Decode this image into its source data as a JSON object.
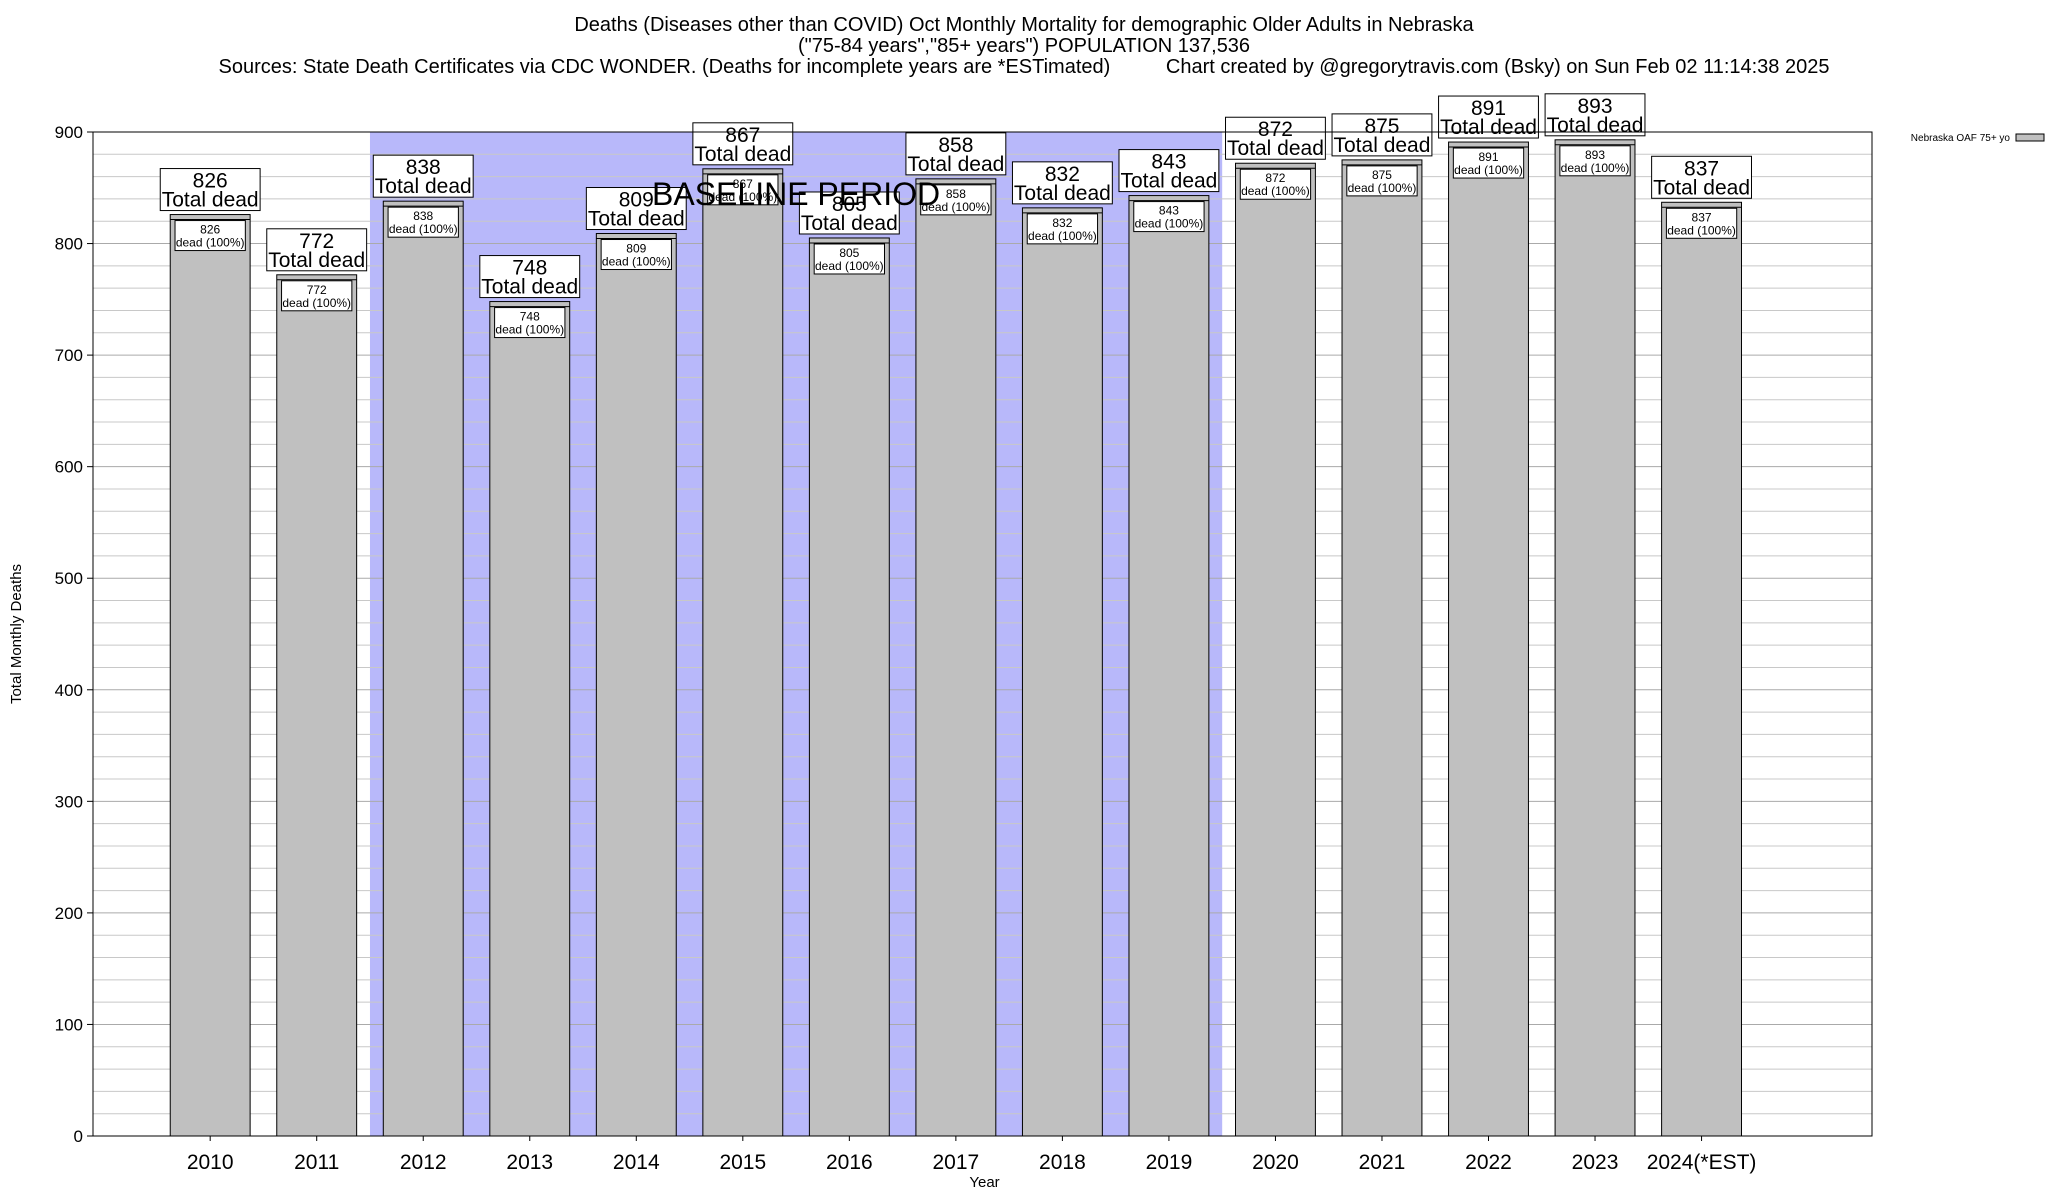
{
  "chart_data": {
    "type": "bar",
    "title": "Deaths (Diseases other than COVID) Oct Monthly Mortality for demographic Older Adults in Nebraska",
    "subtitle": "(\"75-84 years\",\"85+ years\") POPULATION 137,536",
    "sources": "Sources: State Death Certificates via CDC WONDER. (Deaths for incomplete years are *ESTimated)",
    "credit": "Chart created by @gregorytravis.com (Bsky) on Sun Feb 02 11:14:38 2025",
    "xlabel": "Year",
    "ylabel": "Total Monthly Deaths",
    "ylim": [
      0,
      900
    ],
    "yticks": [
      0,
      100,
      200,
      300,
      400,
      500,
      600,
      700,
      800,
      900
    ],
    "categories": [
      "2010",
      "2011",
      "2012",
      "2013",
      "2014",
      "2015",
      "2016",
      "2017",
      "2018",
      "2019",
      "2020",
      "2021",
      "2022",
      "2023",
      "2024(*EST)"
    ],
    "series": [
      {
        "name": "Nebraska OAF 75+ yo",
        "values": [
          826,
          772,
          838,
          748,
          809,
          867,
          805,
          858,
          832,
          843,
          872,
          875,
          891,
          893,
          837
        ]
      }
    ],
    "total_label": "Total dead",
    "inner_label": "dead (100%)",
    "baseline": {
      "label": "BASELINE PERIOD",
      "from": "2012",
      "to": "2019"
    },
    "colors": {
      "bar": "#c0c0c0",
      "baseline": "#b8b8fa",
      "grid": "#c8c8c8"
    },
    "grid": true,
    "legend_position": "top-right"
  }
}
